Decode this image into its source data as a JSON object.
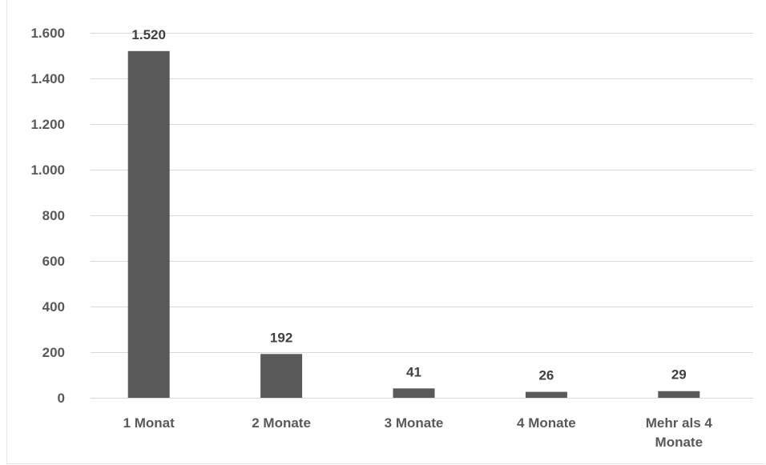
{
  "chart_data": {
    "type": "bar",
    "categories": [
      "1 Monat",
      "2 Monate",
      "3 Monate",
      "4 Monate",
      "Mehr als 4 Monate"
    ],
    "category_lines": [
      [
        "1 Monat"
      ],
      [
        "2 Monate"
      ],
      [
        "3 Monate"
      ],
      [
        "4 Monate"
      ],
      [
        "Mehr als 4",
        "Monate"
      ]
    ],
    "values": [
      1520,
      192,
      41,
      26,
      29
    ],
    "data_labels": [
      "1.520",
      "192",
      "41",
      "26",
      "29"
    ],
    "y_ticks": [
      0,
      200,
      400,
      600,
      800,
      1000,
      1200,
      1400,
      1600
    ],
    "y_tick_labels": [
      "0",
      "200",
      "400",
      "600",
      "800",
      "1.000",
      "1.200",
      "1.400",
      "1.600"
    ],
    "ylim": [
      0,
      1600
    ],
    "grid": true,
    "legend": "none",
    "bar_color": "#595959",
    "grid_color": "#d9d9d9",
    "title": "",
    "xlabel": "",
    "ylabel": ""
  }
}
